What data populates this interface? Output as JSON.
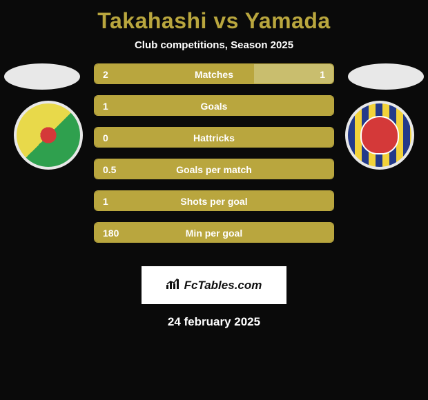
{
  "title": "Takahashi vs Yamada",
  "subtitle": "Club competitions, Season 2025",
  "date": "24 february 2025",
  "fctables_label": "FcTables.com",
  "colors": {
    "accent": "#b9a63e",
    "accent_dark": "#7a6f28",
    "right_fill": "#c9be6e",
    "bg": "#0a0a0a",
    "text": "#ffffff",
    "ellipse": "#e8e8e8"
  },
  "rows": [
    {
      "label": "Matches",
      "left": "2",
      "right": "1",
      "left_pct": 66.7,
      "right_pct": 33.3
    },
    {
      "label": "Goals",
      "left": "1",
      "right": "",
      "left_pct": 100,
      "right_pct": 0
    },
    {
      "label": "Hattricks",
      "left": "0",
      "right": "",
      "left_pct": 100,
      "right_pct": 0
    },
    {
      "label": "Goals per match",
      "left": "0.5",
      "right": "",
      "left_pct": 100,
      "right_pct": 0
    },
    {
      "label": "Shots per goal",
      "left": "1",
      "right": "",
      "left_pct": 100,
      "right_pct": 0
    },
    {
      "label": "Min per goal",
      "left": "180",
      "right": "",
      "left_pct": 100,
      "right_pct": 0
    }
  ]
}
